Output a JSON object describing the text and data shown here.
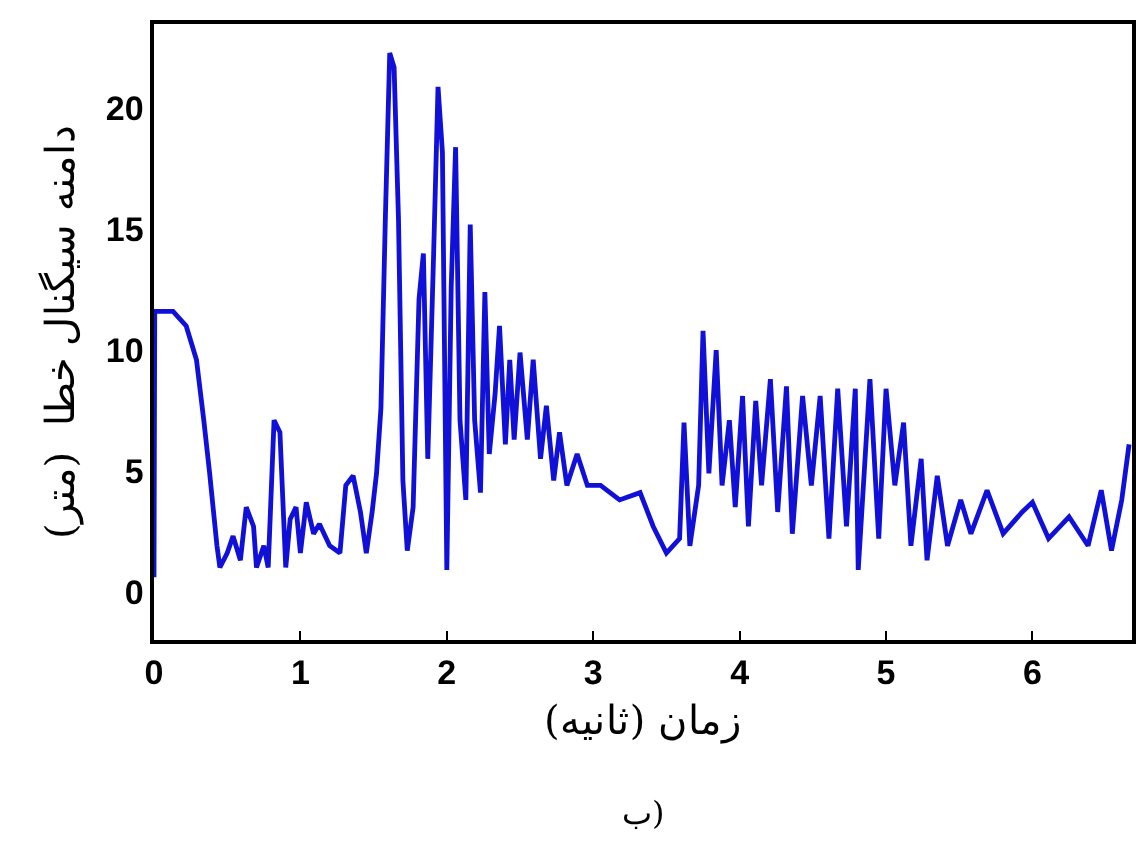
{
  "chart_data": {
    "type": "line",
    "xlabel": "زمان (ثانیه)",
    "ylabel": "دامنه سیگنال خطا  (متر)",
    "annotations": [
      "ب)"
    ],
    "xlim": [
      0,
      6.68
    ],
    "xticks": [
      0,
      1,
      2,
      3,
      4,
      5,
      6
    ],
    "ylim": [
      -2,
      23.5
    ],
    "yticks": [
      0,
      5,
      10,
      15,
      20
    ],
    "grid": false,
    "legend": false,
    "marker": "none",
    "line_style": "solid",
    "series": [
      {
        "color": "#1010d8",
        "x": [
          0,
          0.005,
          0.13,
          0.22,
          0.29,
          0.34,
          0.38,
          0.43,
          0.45,
          0.5,
          0.54,
          0.59,
          0.63,
          0.68,
          0.7,
          0.75,
          0.78,
          0.82,
          0.86,
          0.9,
          0.93,
          0.97,
          1.0,
          1.04,
          1.09,
          1.13,
          1.2,
          1.27,
          1.31,
          1.36,
          1.41,
          1.45,
          1.49,
          1.52,
          1.55,
          1.58,
          1.61,
          1.64,
          1.67,
          1.7,
          1.73,
          1.77,
          1.81,
          1.84,
          1.87,
          1.91,
          1.94,
          1.97,
          2.0,
          2.03,
          2.06,
          2.09,
          2.13,
          2.16,
          2.19,
          2.23,
          2.26,
          2.29,
          2.33,
          2.36,
          2.4,
          2.43,
          2.46,
          2.5,
          2.55,
          2.59,
          2.64,
          2.68,
          2.73,
          2.77,
          2.82,
          2.89,
          2.96,
          3.05,
          3.18,
          3.32,
          3.41,
          3.5,
          3.59,
          3.62,
          3.66,
          3.72,
          3.75,
          3.79,
          3.84,
          3.88,
          3.93,
          3.97,
          4.02,
          4.06,
          4.11,
          4.15,
          4.21,
          4.26,
          4.32,
          4.36,
          4.43,
          4.49,
          4.55,
          4.61,
          4.67,
          4.73,
          4.79,
          4.81,
          4.89,
          4.95,
          5.0,
          5.06,
          5.12,
          5.17,
          5.24,
          5.28,
          5.35,
          5.42,
          5.51,
          5.58,
          5.69,
          5.8,
          5.93,
          6.0,
          6.11,
          6.25,
          6.38,
          6.47,
          6.54,
          6.61,
          6.66
        ],
        "values": [
          0.6,
          11.6,
          11.6,
          11.0,
          9.6,
          7.1,
          4.9,
          1.9,
          1.0,
          1.6,
          2.3,
          1.3,
          3.5,
          2.7,
          1.0,
          1.9,
          1.0,
          7.1,
          6.6,
          1.0,
          3.0,
          3.5,
          1.6,
          3.7,
          2.4,
          2.8,
          1.9,
          1.6,
          4.4,
          4.8,
          3.3,
          1.6,
          3.3,
          4.9,
          7.6,
          15.4,
          22.3,
          21.7,
          15.4,
          4.6,
          1.7,
          3.5,
          12.1,
          14.0,
          5.5,
          14.0,
          20.9,
          18.2,
          0.9,
          12.6,
          18.4,
          7.1,
          3.8,
          15.2,
          7.1,
          4.1,
          12.4,
          5.7,
          8.2,
          11.0,
          6.1,
          9.6,
          6.3,
          9.9,
          6.3,
          9.6,
          5.5,
          7.7,
          4.6,
          6.6,
          4.4,
          5.7,
          4.4,
          4.4,
          3.8,
          4.1,
          2.7,
          1.6,
          2.2,
          7.0,
          1.9,
          4.4,
          10.8,
          4.9,
          10.0,
          4.4,
          7.1,
          3.5,
          8.1,
          2.7,
          7.9,
          4.4,
          8.8,
          3.3,
          8.5,
          2.4,
          8.1,
          4.4,
          8.1,
          2.2,
          8.4,
          2.7,
          8.4,
          0.9,
          8.8,
          2.2,
          8.4,
          4.4,
          7.0,
          1.9,
          5.5,
          1.3,
          4.8,
          1.9,
          3.8,
          2.4,
          4.2,
          2.4,
          3.3,
          3.7,
          2.2,
          3.1,
          1.9,
          4.2,
          1.7,
          3.8,
          6.1
        ]
      }
    ]
  }
}
